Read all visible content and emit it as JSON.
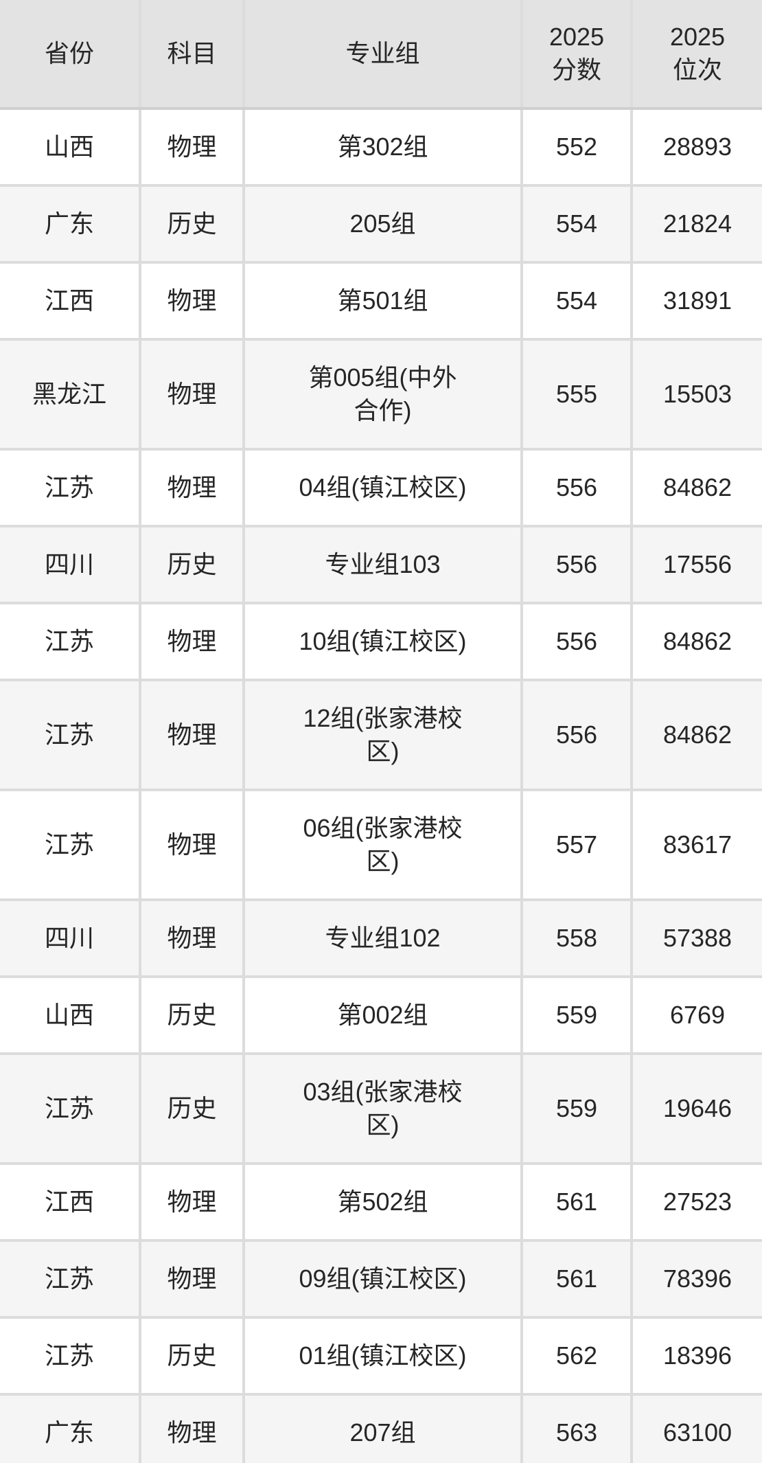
{
  "colors": {
    "page_background": "#ffffff",
    "header_background": "#e3e3e3",
    "row_background": "#ffffff",
    "row_alt_background": "#f5f5f5",
    "grid_line": "#dcdcdc",
    "text": "#262626"
  },
  "table": {
    "columns": [
      {
        "id": "province",
        "label": "省份"
      },
      {
        "id": "subject",
        "label": "科目"
      },
      {
        "id": "group",
        "label": "专业组"
      },
      {
        "id": "score",
        "label": "2025分数"
      },
      {
        "id": "rank",
        "label": "2025位次"
      }
    ],
    "rows": [
      {
        "province": "山西",
        "subject": "物理",
        "group": "第302组",
        "score": "552",
        "rank": "28893"
      },
      {
        "province": "广东",
        "subject": "历史",
        "group": "205组",
        "score": "554",
        "rank": "21824"
      },
      {
        "province": "江西",
        "subject": "物理",
        "group": "第501组",
        "score": "554",
        "rank": "31891"
      },
      {
        "province": "黑龙江",
        "subject": "物理",
        "group": "第005组(中外合作)",
        "score": "555",
        "rank": "15503"
      },
      {
        "province": "江苏",
        "subject": "物理",
        "group": "04组(镇江校区)",
        "score": "556",
        "rank": "84862"
      },
      {
        "province": "四川",
        "subject": "历史",
        "group": "专业组103",
        "score": "556",
        "rank": "17556"
      },
      {
        "province": "江苏",
        "subject": "物理",
        "group": "10组(镇江校区)",
        "score": "556",
        "rank": "84862"
      },
      {
        "province": "江苏",
        "subject": "物理",
        "group": "12组(张家港校区)",
        "score": "556",
        "rank": "84862"
      },
      {
        "province": "江苏",
        "subject": "物理",
        "group": "06组(张家港校区)",
        "score": "557",
        "rank": "83617"
      },
      {
        "province": "四川",
        "subject": "物理",
        "group": "专业组102",
        "score": "558",
        "rank": "57388"
      },
      {
        "province": "山西",
        "subject": "历史",
        "group": "第002组",
        "score": "559",
        "rank": "6769"
      },
      {
        "province": "江苏",
        "subject": "历史",
        "group": "03组(张家港校区)",
        "score": "559",
        "rank": "19646"
      },
      {
        "province": "江西",
        "subject": "物理",
        "group": "第502组",
        "score": "561",
        "rank": "27523"
      },
      {
        "province": "江苏",
        "subject": "物理",
        "group": "09组(镇江校区)",
        "score": "561",
        "rank": "78396"
      },
      {
        "province": "江苏",
        "subject": "历史",
        "group": "01组(镇江校区)",
        "score": "562",
        "rank": "18396"
      },
      {
        "province": "广东",
        "subject": "物理",
        "group": "207组",
        "score": "563",
        "rank": "63100"
      }
    ]
  },
  "chart_data": {
    "type": "table",
    "title": "",
    "columns": [
      "省份",
      "科目",
      "专业组",
      "2025分数",
      "2025位次"
    ],
    "rows": [
      [
        "山西",
        "物理",
        "第302组",
        552,
        28893
      ],
      [
        "广东",
        "历史",
        "205组",
        554,
        21824
      ],
      [
        "江西",
        "物理",
        "第501组",
        554,
        31891
      ],
      [
        "黑龙江",
        "物理",
        "第005组(中外合作)",
        555,
        15503
      ],
      [
        "江苏",
        "物理",
        "04组(镇江校区)",
        556,
        84862
      ],
      [
        "四川",
        "历史",
        "专业组103",
        556,
        17556
      ],
      [
        "江苏",
        "物理",
        "10组(镇江校区)",
        556,
        84862
      ],
      [
        "江苏",
        "物理",
        "12组(张家港校区)",
        556,
        84862
      ],
      [
        "江苏",
        "物理",
        "06组(张家港校区)",
        557,
        83617
      ],
      [
        "四川",
        "物理",
        "专业组102",
        558,
        57388
      ],
      [
        "山西",
        "历史",
        "第002组",
        559,
        6769
      ],
      [
        "江苏",
        "历史",
        "03组(张家港校区)",
        559,
        19646
      ],
      [
        "江西",
        "物理",
        "第502组",
        561,
        27523
      ],
      [
        "江苏",
        "物理",
        "09组(镇江校区)",
        561,
        78396
      ],
      [
        "江苏",
        "历史",
        "01组(镇江校区)",
        562,
        18396
      ],
      [
        "广东",
        "物理",
        "207组",
        563,
        63100
      ]
    ]
  }
}
